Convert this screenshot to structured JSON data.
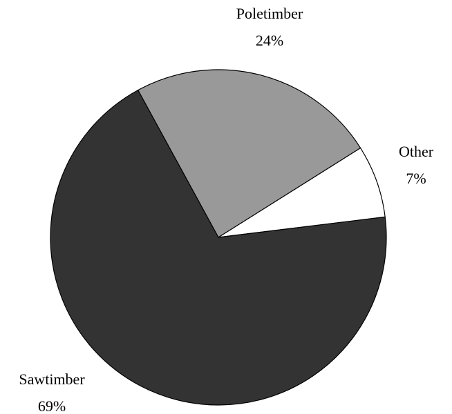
{
  "chart_data": {
    "type": "pie",
    "categories": [
      "Poletimber",
      "Other",
      "Sawtimber"
    ],
    "values": [
      24,
      7,
      69
    ],
    "value_labels": [
      "24%",
      "7%",
      "69%"
    ],
    "colors": [
      "#999999",
      "#ffffff",
      "#333333"
    ]
  }
}
